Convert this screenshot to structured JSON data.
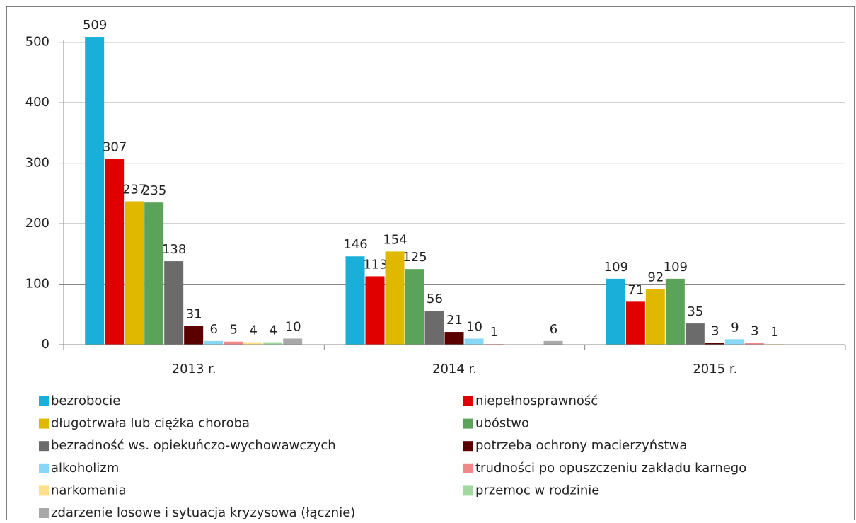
{
  "chart_data": {
    "type": "bar",
    "categories": [
      "2013 r.",
      "2014 r.",
      "2015 r."
    ],
    "series": [
      {
        "name": "bezrobocie",
        "color": "#1aafd9",
        "values": [
          509,
          146,
          109
        ]
      },
      {
        "name": "niepełnosprawność",
        "color": "#e00000",
        "values": [
          307,
          113,
          71
        ]
      },
      {
        "name": "długotrwała lub ciężka choroba",
        "color": "#e0b800",
        "values": [
          237,
          154,
          92
        ]
      },
      {
        "name": "ubóstwo",
        "color": "#5ba35b",
        "values": [
          235,
          125,
          109
        ]
      },
      {
        "name": "bezradność ws. opiekuńczo-wychowawczych",
        "color": "#6b6b6b",
        "values": [
          138,
          56,
          35
        ]
      },
      {
        "name": "potrzeba ochrony macierzyństwa",
        "color": "#5a0000",
        "values": [
          31,
          21,
          3
        ]
      },
      {
        "name": "alkoholizm",
        "color": "#88d8f5",
        "values": [
          6,
          10,
          9
        ]
      },
      {
        "name": "trudności po opuszczeniu zakładu karnego",
        "color": "#f08888",
        "values": [
          5,
          1,
          3
        ]
      },
      {
        "name": "narkomania",
        "color": "#ffe08a",
        "values": [
          4,
          null,
          1
        ]
      },
      {
        "name": "przemoc w rodzinie",
        "color": "#a0d8a0",
        "values": [
          4,
          null,
          null
        ]
      },
      {
        "name": "zdarzenie losowe i sytuacja kryzysowa (łącznie)",
        "color": "#a8a8a8",
        "values": [
          10,
          6,
          null
        ]
      }
    ],
    "ylim": [
      0,
      550
    ],
    "yticks": [
      0,
      100,
      200,
      300,
      400,
      500
    ],
    "grid": true,
    "legend": "bottom"
  }
}
